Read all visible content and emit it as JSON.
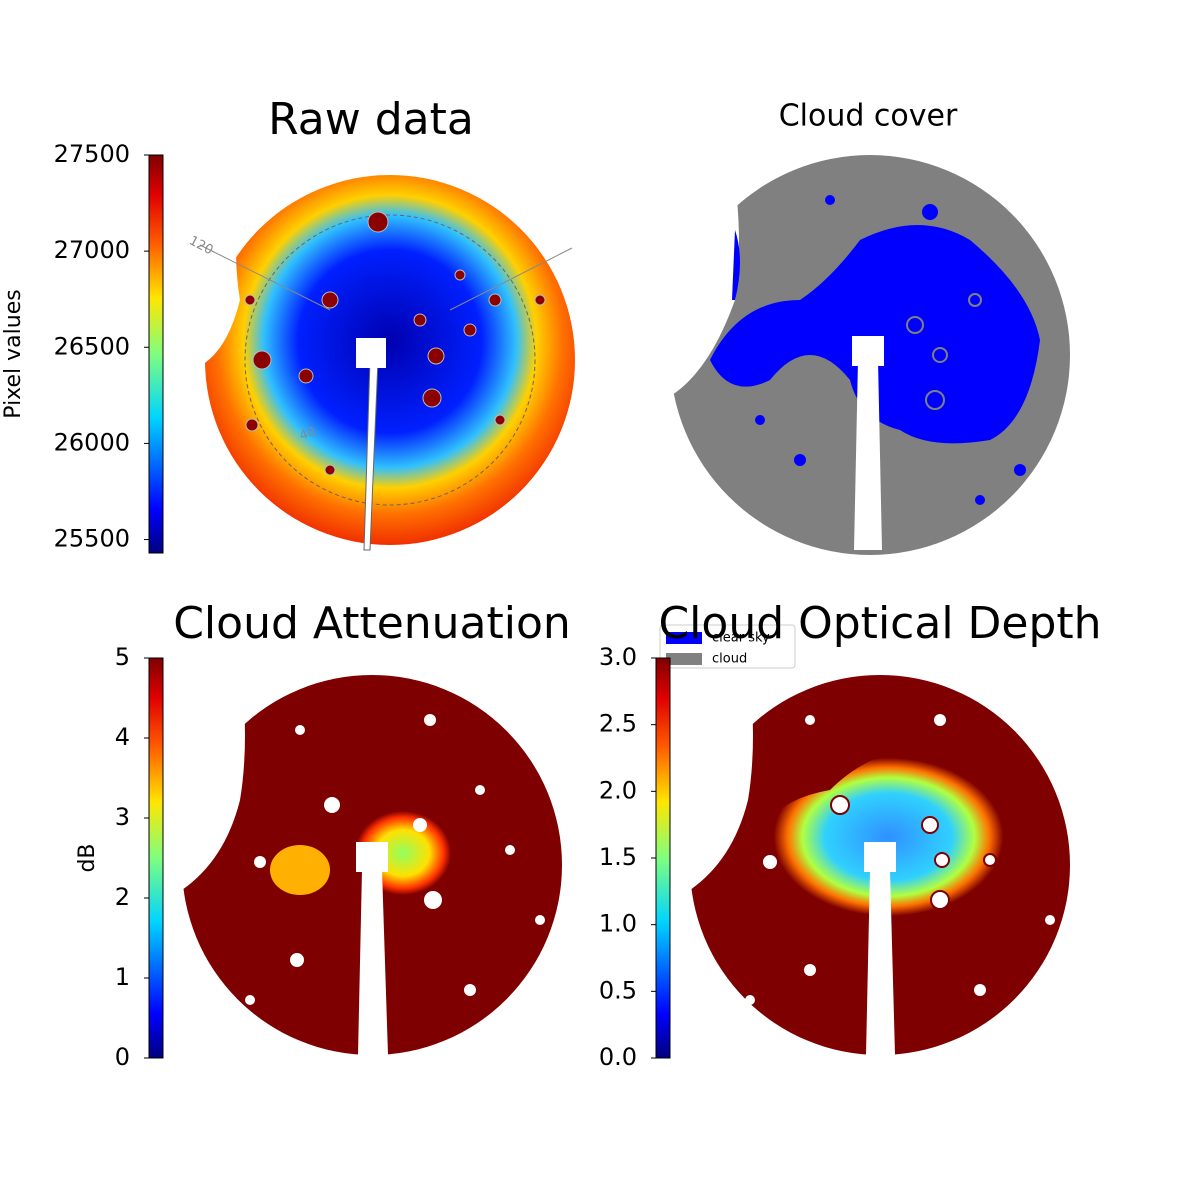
{
  "chart_data": [
    {
      "type": "image",
      "title": "Raw data",
      "colorbar_label": "Pixel values",
      "ylim": [
        25430,
        27500
      ],
      "yticks": [
        25500,
        26000,
        26500,
        27000,
        27500
      ],
      "annotations": [
        "120",
        "40"
      ]
    },
    {
      "type": "image",
      "title": "Cloud cover",
      "series": [
        {
          "name": "clear sky",
          "color": "#0000ff"
        },
        {
          "name": "cloud",
          "color": "#808080"
        }
      ]
    },
    {
      "type": "image",
      "title": "Cloud Attenuation",
      "colorbar_label": "dB",
      "ylim": [
        0,
        5
      ],
      "yticks": [
        0,
        1,
        2,
        3,
        4,
        5
      ]
    },
    {
      "type": "image",
      "title": "Cloud Optical Depth",
      "ylim": [
        0,
        3
      ],
      "yticks": [
        {
          "value": 0,
          "label": "0.0"
        },
        {
          "value": 0.5,
          "label": "0.5"
        },
        {
          "value": 1,
          "label": "1.0"
        },
        {
          "value": 1.5,
          "label": "1.5"
        },
        {
          "value": 2,
          "label": "2.0"
        },
        {
          "value": 2.5,
          "label": "2.5"
        },
        {
          "value": 3,
          "label": "3.0"
        }
      ]
    }
  ]
}
